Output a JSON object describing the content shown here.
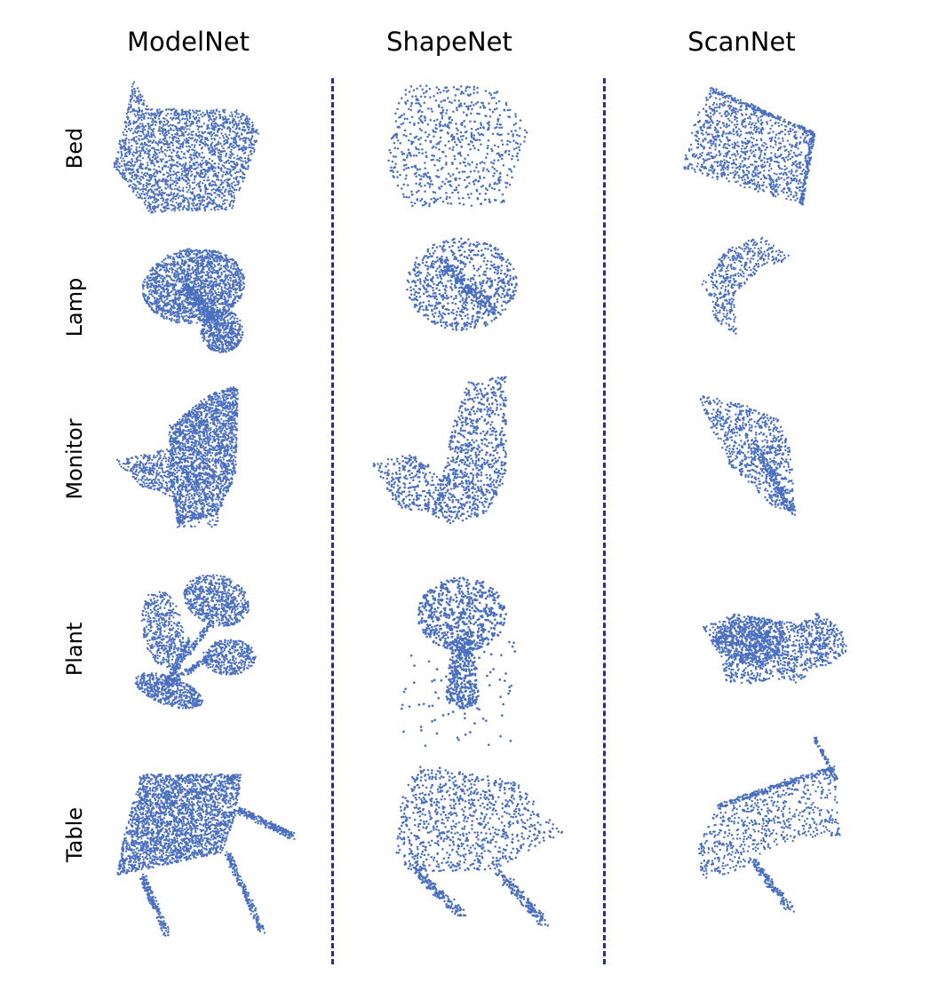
{
  "columns": [
    "ModelNet",
    "ShapeNet",
    "ScanNet"
  ],
  "rows": [
    "Bed",
    "Lamp",
    "Monitor",
    "Plant",
    "Table"
  ],
  "colors": {
    "points": "#4a6fbf",
    "divider": "#1c2bb0",
    "text": "#000000"
  }
}
